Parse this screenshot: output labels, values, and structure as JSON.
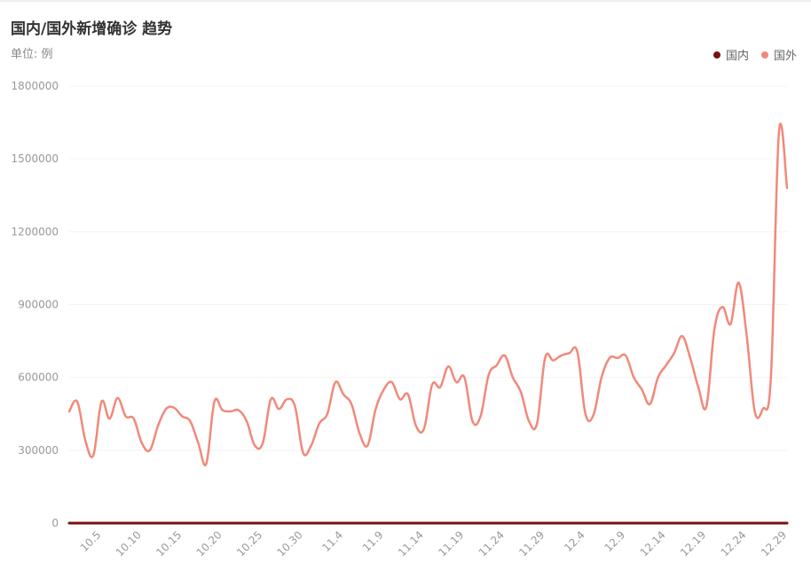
{
  "chart_data": {
    "type": "line",
    "title": "国内/国外新增确诊 趋势",
    "unit_label": "单位: 例",
    "ylim": [
      0,
      1800000
    ],
    "y_ticks": [
      "0",
      "300000",
      "600000",
      "900000",
      "1200000",
      "1500000",
      "1800000"
    ],
    "x_tick_labels": [
      "10.5",
      "10.10",
      "10.15",
      "10.20",
      "10.25",
      "10.30",
      "11.4",
      "11.9",
      "11.14",
      "11.19",
      "11.24",
      "11.29",
      "12.4",
      "12.9",
      "12.14",
      "12.19",
      "12.24",
      "12.29"
    ],
    "x_label_indices": [
      4,
      9,
      14,
      19,
      24,
      29,
      34,
      39,
      44,
      49,
      54,
      59,
      64,
      69,
      74,
      79,
      84,
      89
    ],
    "grid": true,
    "legend": "top-right",
    "series": [
      {
        "name": "国内",
        "color": "#7a1010",
        "values": [
          30,
          28,
          25,
          32,
          20,
          22,
          30,
          27,
          24,
          31,
          26,
          20,
          18,
          22,
          28,
          30,
          25,
          20,
          23,
          35,
          40,
          32,
          26,
          28,
          30,
          22,
          18,
          25,
          28,
          31,
          35,
          27,
          24,
          22,
          20,
          26,
          30,
          32,
          29,
          25,
          22,
          20,
          24,
          28,
          31,
          33,
          26,
          22,
          20,
          18,
          25,
          30,
          28,
          24,
          22,
          26,
          30,
          34,
          32,
          28,
          25,
          23,
          20,
          22,
          26,
          28,
          30,
          35,
          38,
          32,
          29,
          27,
          25,
          22,
          20,
          24,
          28,
          30,
          33,
          36,
          40,
          38,
          34,
          30,
          28,
          25,
          32,
          38,
          42,
          45
        ]
      },
      {
        "name": "国外",
        "color": "#f0897a",
        "values": [
          460000,
          500000,
          340000,
          280000,
          500000,
          430000,
          515000,
          440000,
          430000,
          330000,
          300000,
          400000,
          470000,
          475000,
          440000,
          420000,
          330000,
          245000,
          500000,
          465000,
          460000,
          465000,
          420000,
          320000,
          330000,
          510000,
          470000,
          510000,
          480000,
          290000,
          320000,
          410000,
          450000,
          580000,
          530000,
          490000,
          370000,
          320000,
          470000,
          550000,
          580000,
          510000,
          530000,
          400000,
          390000,
          570000,
          560000,
          645000,
          580000,
          600000,
          420000,
          440000,
          610000,
          650000,
          690000,
          600000,
          540000,
          420000,
          410000,
          680000,
          670000,
          690000,
          700000,
          705000,
          450000,
          445000,
          600000,
          680000,
          680000,
          690000,
          600000,
          550000,
          490000,
          600000,
          650000,
          700000,
          770000,
          680000,
          560000,
          480000,
          800000,
          890000,
          820000,
          990000,
          770000,
          460000,
          470000,
          600000,
          1610000,
          1380000
        ]
      }
    ]
  }
}
